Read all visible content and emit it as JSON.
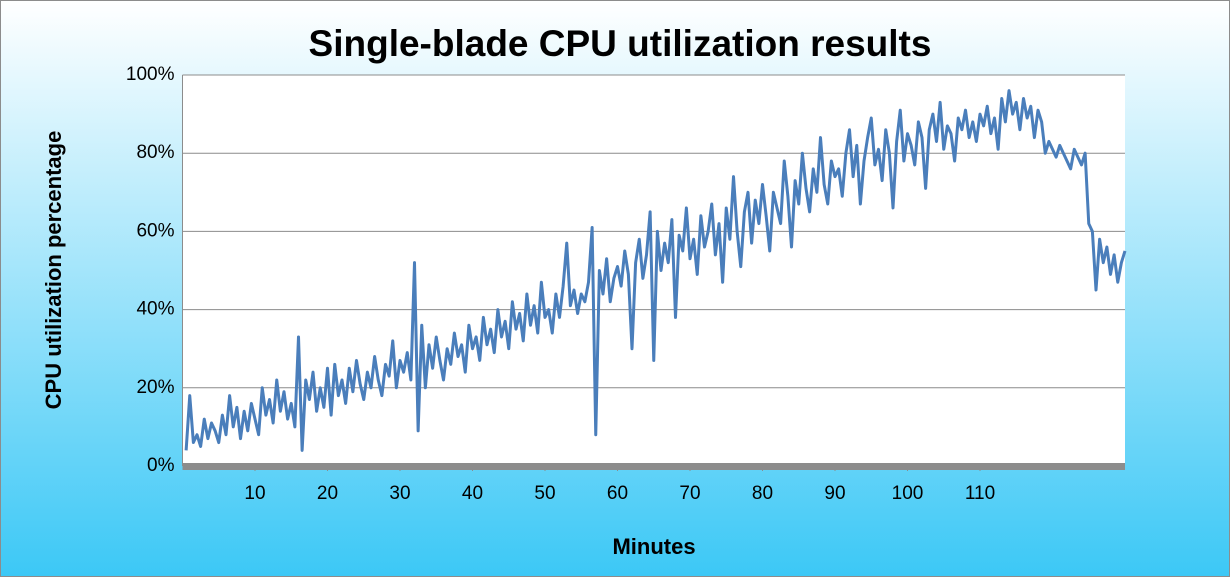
{
  "chart_data": {
    "type": "line",
    "title": "Single-blade CPU utilization results",
    "x_label": "Minutes",
    "y_label": "CPU utilization percentage",
    "xlim": [
      0,
      130
    ],
    "xticks": [
      10,
      20,
      30,
      40,
      50,
      60,
      70,
      80,
      90,
      100,
      110
    ],
    "ylim": [
      0,
      100
    ],
    "yticks": [
      {
        "value": 0,
        "label": "0%"
      },
      {
        "value": 20,
        "label": "20%"
      },
      {
        "value": 40,
        "label": "40%"
      },
      {
        "value": 60,
        "label": "60%"
      },
      {
        "value": 80,
        "label": "80%"
      },
      {
        "value": 100,
        "label": "100%"
      }
    ],
    "grid": true,
    "x": [
      0.5,
      1,
      1.5,
      2,
      2.5,
      3,
      3.5,
      4,
      4.5,
      5,
      5.5,
      6,
      6.5,
      7,
      7.5,
      8,
      8.5,
      9,
      9.5,
      10,
      10.5,
      11,
      11.5,
      12,
      12.5,
      13,
      13.5,
      14,
      14.5,
      15,
      15.5,
      16,
      16.5,
      17,
      17.5,
      18,
      18.5,
      19,
      19.5,
      20,
      20.5,
      21,
      21.5,
      22,
      22.5,
      23,
      23.5,
      24,
      24.5,
      25,
      25.5,
      26,
      26.5,
      27,
      27.5,
      28,
      28.5,
      29,
      29.5,
      30,
      30.5,
      31,
      31.5,
      32,
      32.5,
      33,
      33.5,
      34,
      34.5,
      35,
      35.5,
      36,
      36.5,
      37,
      37.5,
      38,
      38.5,
      39,
      39.5,
      40,
      40.5,
      41,
      41.5,
      42,
      42.5,
      43,
      43.5,
      44,
      44.5,
      45,
      45.5,
      46,
      46.5,
      47,
      47.5,
      48,
      48.5,
      49,
      49.5,
      50,
      50.5,
      51,
      51.5,
      52,
      52.5,
      53,
      53.5,
      54,
      54.5,
      55,
      55.5,
      56,
      56.5,
      57,
      57.5,
      58,
      58.5,
      59,
      59.5,
      60,
      60.5,
      61,
      61.5,
      62,
      62.5,
      63,
      63.5,
      64,
      64.5,
      65,
      65.5,
      66,
      66.5,
      67,
      67.5,
      68,
      68.5,
      69,
      69.5,
      70,
      70.5,
      71,
      71.5,
      72,
      72.5,
      73,
      73.5,
      74,
      74.5,
      75,
      75.5,
      76,
      76.5,
      77,
      77.5,
      78,
      78.5,
      79,
      79.5,
      80,
      80.5,
      81,
      81.5,
      82,
      82.5,
      83,
      83.5,
      84,
      84.5,
      85,
      85.5,
      86,
      86.5,
      87,
      87.5,
      88,
      88.5,
      89,
      89.5,
      90,
      90.5,
      91,
      91.5,
      92,
      92.5,
      93,
      93.5,
      94,
      94.5,
      95,
      95.5,
      96,
      96.5,
      97,
      97.5,
      98,
      98.5,
      99,
      99.5,
      100,
      100.5,
      101,
      101.5,
      102,
      102.5,
      103,
      103.5,
      104,
      104.5,
      105,
      105.5,
      106,
      106.5,
      107,
      107.5,
      108,
      108.5,
      109,
      109.5,
      110,
      110.5,
      111,
      111.5,
      112,
      112.5,
      113,
      113.5,
      114,
      114.5,
      115,
      115.5,
      116,
      116.5,
      117,
      117.5,
      118,
      118.5,
      119,
      119.5,
      120,
      120.5,
      121,
      121.5,
      122,
      122.5,
      123,
      123.5,
      124,
      124.5,
      125,
      125.5,
      126,
      126.5,
      127,
      127.5,
      128,
      128.5,
      129,
      129.5,
      130
    ],
    "series": [
      {
        "name": "CPU utilization",
        "color": "#4a7ebb",
        "values": [
          4,
          18,
          6,
          8,
          5,
          12,
          7,
          11,
          9,
          6,
          13,
          8,
          18,
          10,
          15,
          7,
          14,
          9,
          16,
          12,
          8,
          20,
          13,
          17,
          11,
          22,
          14,
          19,
          12,
          16,
          10,
          33,
          4,
          22,
          17,
          24,
          14,
          20,
          15,
          25,
          13,
          26,
          18,
          22,
          16,
          25,
          19,
          27,
          21,
          17,
          24,
          20,
          28,
          22,
          18,
          26,
          23,
          32,
          20,
          27,
          24,
          29,
          22,
          52,
          9,
          36,
          20,
          31,
          25,
          33,
          27,
          22,
          30,
          26,
          34,
          28,
          31,
          24,
          36,
          30,
          33,
          27,
          38,
          31,
          35,
          29,
          40,
          33,
          37,
          30,
          42,
          35,
          39,
          32,
          44,
          36,
          41,
          34,
          47,
          38,
          40,
          34,
          44,
          38,
          46,
          57,
          41,
          45,
          39,
          44,
          42,
          47,
          61,
          8,
          50,
          44,
          53,
          42,
          48,
          51,
          46,
          55,
          49,
          30,
          52,
          58,
          48,
          54,
          65,
          27,
          60,
          50,
          57,
          52,
          63,
          38,
          59,
          55,
          66,
          53,
          58,
          49,
          64,
          56,
          60,
          67,
          54,
          62,
          47,
          66,
          58,
          74,
          60,
          51,
          65,
          70,
          57,
          68,
          62,
          72,
          64,
          55,
          70,
          66,
          62,
          78,
          69,
          56,
          73,
          67,
          80,
          71,
          65,
          76,
          70,
          84,
          72,
          67,
          78,
          74,
          76,
          69,
          80,
          86,
          74,
          82,
          67,
          78,
          84,
          89,
          77,
          81,
          73,
          86,
          80,
          66,
          83,
          91,
          78,
          85,
          82,
          77,
          88,
          84,
          71,
          86,
          90,
          83,
          93,
          81,
          87,
          85,
          78,
          89,
          86,
          91,
          84,
          88,
          83,
          90,
          87,
          92,
          85,
          89,
          81,
          94,
          88,
          96,
          90,
          93,
          86,
          94,
          89,
          92,
          84,
          91,
          88,
          80,
          83,
          81,
          79,
          82,
          80,
          78,
          76,
          81,
          79,
          77,
          80,
          62,
          60,
          45,
          58,
          52,
          56,
          49,
          54,
          47,
          52,
          55
        ]
      }
    ]
  }
}
